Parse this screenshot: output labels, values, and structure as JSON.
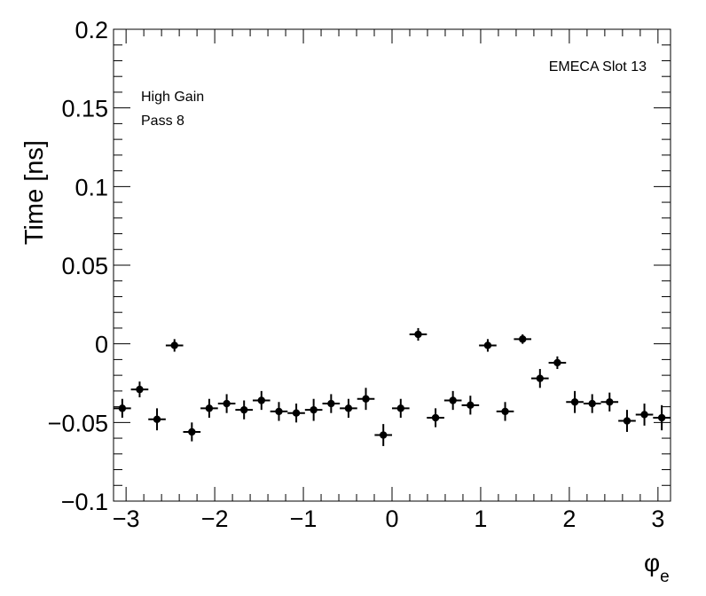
{
  "chart_data": {
    "type": "scatter",
    "ylabel": "Time [ns]",
    "xlabel_symbol": "φ",
    "xlabel_subscript": "e",
    "annotations": {
      "top_right": "EMECA Slot 13",
      "line1": "High Gain",
      "line2": "Pass 8"
    },
    "xlim": [
      -3.1416,
      3.1416
    ],
    "ylim": [
      -0.1,
      0.2
    ],
    "x_ticks": [
      -3,
      -2,
      -1,
      0,
      1,
      2,
      3
    ],
    "x_tick_labels": [
      "−3",
      "−2",
      "−1",
      "0",
      "1",
      "2",
      "3"
    ],
    "y_ticks": [
      -0.1,
      -0.05,
      0,
      0.05,
      0.1,
      0.15,
      0.2
    ],
    "y_tick_labels": [
      "−0.1",
      "−0.05",
      "0",
      "0.05",
      "0.1",
      "0.15",
      "0.2"
    ],
    "grid": false,
    "bin_half_width": 0.0982,
    "points": [
      {
        "x": -3.043,
        "y": -0.041,
        "err": 0.006
      },
      {
        "x": -2.847,
        "y": -0.029,
        "err": 0.005
      },
      {
        "x": -2.651,
        "y": -0.048,
        "err": 0.007
      },
      {
        "x": -2.454,
        "y": -0.001,
        "err": 0.004
      },
      {
        "x": -2.258,
        "y": -0.056,
        "err": 0.006
      },
      {
        "x": -2.062,
        "y": -0.041,
        "err": 0.006
      },
      {
        "x": -1.865,
        "y": -0.038,
        "err": 0.006
      },
      {
        "x": -1.669,
        "y": -0.042,
        "err": 0.006
      },
      {
        "x": -1.473,
        "y": -0.036,
        "err": 0.006
      },
      {
        "x": -1.276,
        "y": -0.043,
        "err": 0.006
      },
      {
        "x": -1.08,
        "y": -0.044,
        "err": 0.006
      },
      {
        "x": -0.884,
        "y": -0.042,
        "err": 0.007
      },
      {
        "x": -0.687,
        "y": -0.038,
        "err": 0.006
      },
      {
        "x": -0.491,
        "y": -0.041,
        "err": 0.006
      },
      {
        "x": -0.295,
        "y": -0.035,
        "err": 0.007
      },
      {
        "x": -0.098,
        "y": -0.058,
        "err": 0.007
      },
      {
        "x": 0.098,
        "y": -0.041,
        "err": 0.006
      },
      {
        "x": 0.295,
        "y": 0.006,
        "err": 0.004
      },
      {
        "x": 0.491,
        "y": -0.047,
        "err": 0.006
      },
      {
        "x": 0.687,
        "y": -0.036,
        "err": 0.006
      },
      {
        "x": 0.884,
        "y": -0.039,
        "err": 0.006
      },
      {
        "x": 1.08,
        "y": -0.001,
        "err": 0.004
      },
      {
        "x": 1.276,
        "y": -0.043,
        "err": 0.006
      },
      {
        "x": 1.473,
        "y": 0.003,
        "err": 0.003
      },
      {
        "x": 1.669,
        "y": -0.022,
        "err": 0.006
      },
      {
        "x": 1.865,
        "y": -0.012,
        "err": 0.004
      },
      {
        "x": 2.062,
        "y": -0.037,
        "err": 0.007
      },
      {
        "x": 2.258,
        "y": -0.038,
        "err": 0.006
      },
      {
        "x": 2.454,
        "y": -0.037,
        "err": 0.006
      },
      {
        "x": 2.651,
        "y": -0.049,
        "err": 0.007
      },
      {
        "x": 2.847,
        "y": -0.045,
        "err": 0.007
      },
      {
        "x": 3.043,
        "y": -0.047,
        "err": 0.008
      }
    ]
  }
}
